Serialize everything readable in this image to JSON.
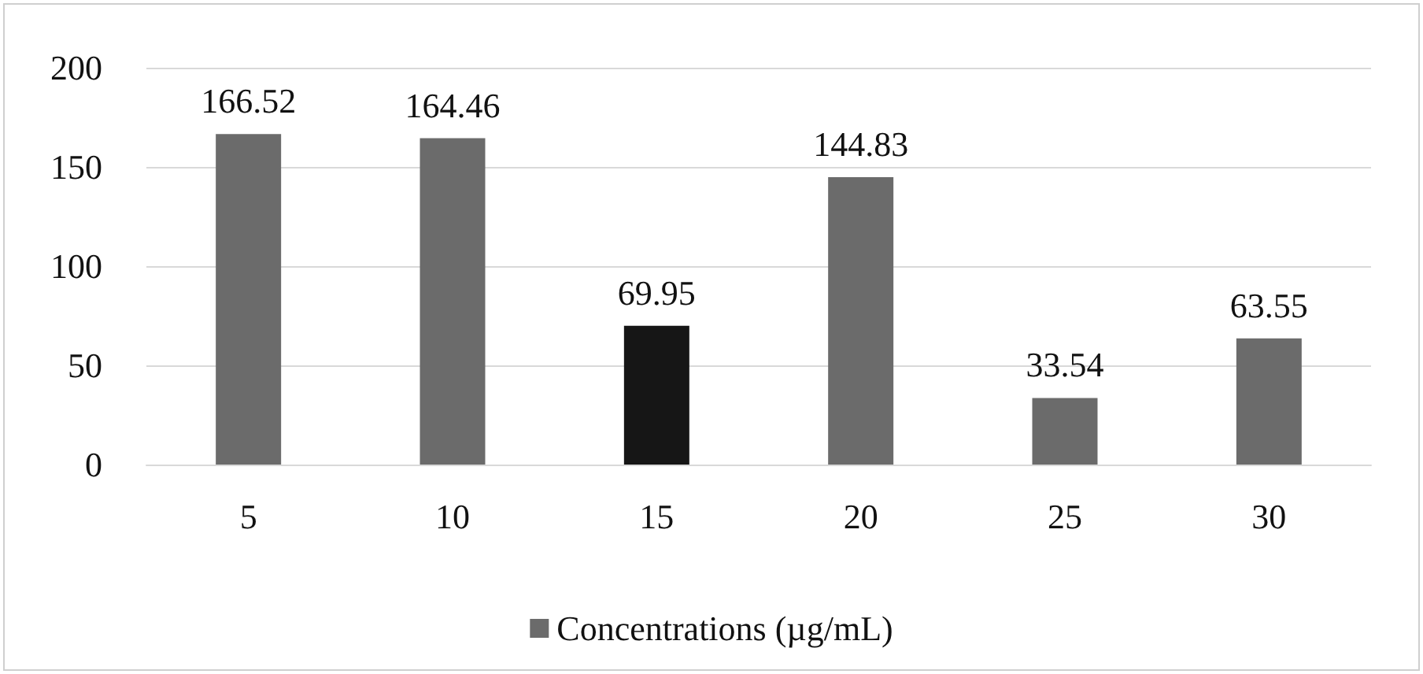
{
  "chart_data": {
    "type": "bar",
    "categories": [
      "5",
      "10",
      "15",
      "20",
      "25",
      "30"
    ],
    "series": [
      {
        "name": "Concentrations (µg/mL)",
        "color": "#6b6b6b",
        "colors": [
          "#6b6b6b",
          "#6b6b6b",
          "#161616",
          "#6b6b6b",
          "#6b6b6b",
          "#6b6b6b"
        ],
        "values": [
          166.52,
          164.46,
          69.95,
          144.83,
          33.54,
          63.55
        ]
      }
    ],
    "ylim": [
      0,
      200
    ],
    "yticks": [
      0,
      50,
      100,
      150,
      200
    ],
    "grid": "y",
    "legend": "bottom",
    "data_labels": true
  }
}
